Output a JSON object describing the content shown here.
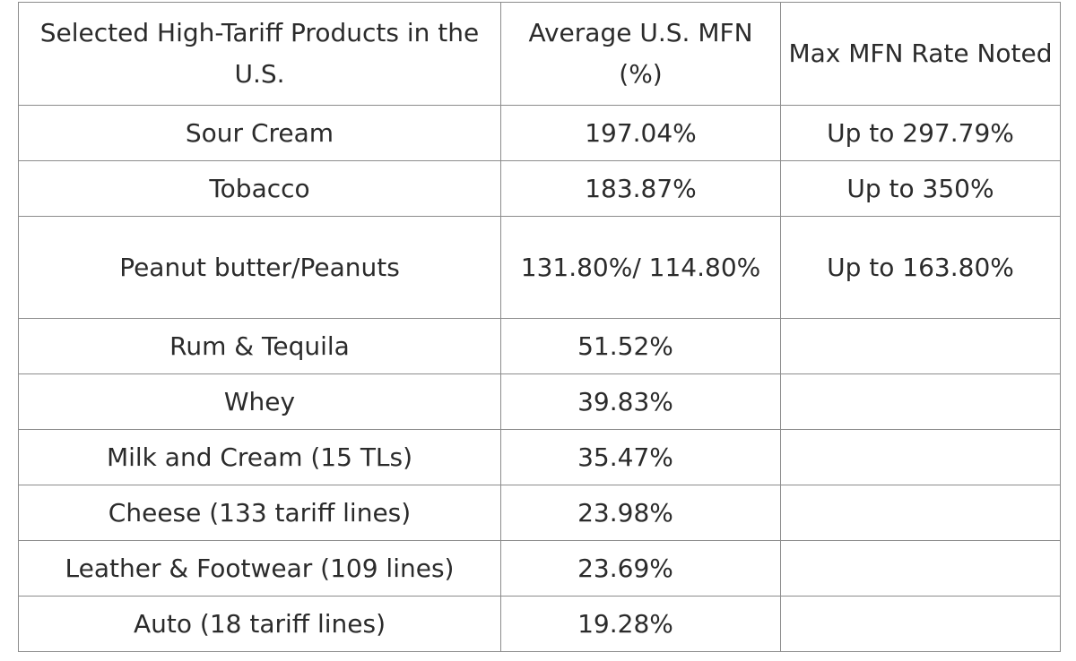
{
  "table": {
    "headers": {
      "product": "Selected High-Tariff Products in the U.S.",
      "average": "Average U.S. MFN (%)",
      "max": "Max MFN Rate Noted"
    },
    "rows": [
      {
        "product": "Sour Cream",
        "average": "197.04%",
        "max": "Up to 297.79%"
      },
      {
        "product": "Tobacco",
        "average": "183.87%",
        "max": "Up to 350%"
      },
      {
        "product": "Peanut butter/Peanuts",
        "average": "131.80%/ 114.80%",
        "max": "Up to 163.80%"
      },
      {
        "product": "Rum & Tequila",
        "average": "51.52%",
        "max": ""
      },
      {
        "product": "Whey",
        "average": "39.83%",
        "max": ""
      },
      {
        "product": "Milk and Cream (15 TLs)",
        "average": "35.47%",
        "max": ""
      },
      {
        "product": "Cheese (133 tariff lines)",
        "average": "23.98%",
        "max": ""
      },
      {
        "product": "Leather & Footwear (109 lines)",
        "average": "23.69%",
        "max": ""
      },
      {
        "product": "Auto (18 tariff lines)",
        "average": "19.28%",
        "max": ""
      }
    ]
  }
}
